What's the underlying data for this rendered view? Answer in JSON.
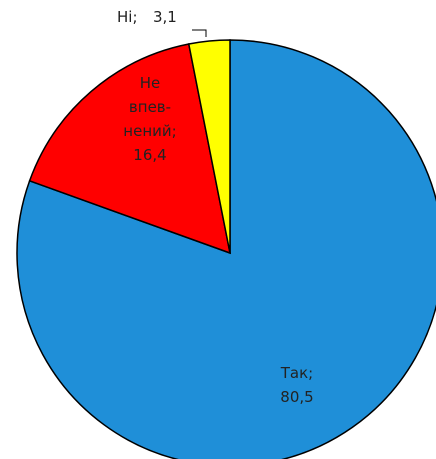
{
  "chart_data": {
    "type": "pie",
    "categories": [
      "Так;",
      "Не впев-нений;",
      "Ні;"
    ],
    "values": [
      80.5,
      16.4,
      3.1
    ],
    "value_labels": [
      "80,5",
      "16,4",
      "3,1"
    ],
    "colors": [
      "#1f8fd8",
      "#ff0000",
      "#ffff00"
    ],
    "start_angle": 0,
    "direction": "clockwise"
  }
}
